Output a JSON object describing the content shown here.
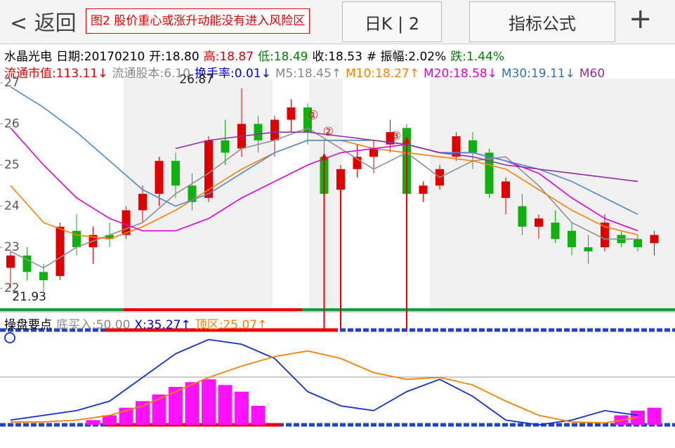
{
  "toolbar": {
    "back": "返回",
    "note": "图2 股价重心或涨升动能没有进入风险区",
    "period": "日K | 2",
    "formula": "指标公式",
    "add": "+"
  },
  "quote": {
    "line1": [
      {
        "text": "水晶光电",
        "color": "#000000"
      },
      {
        "text": "日期:20170210",
        "color": "#000000"
      },
      {
        "text": "开:18.80",
        "color": "#000000"
      },
      {
        "text": "高:18.87",
        "color": "#e00000"
      },
      {
        "text": "低:18.49",
        "color": "#008000"
      },
      {
        "text": "收:18.53",
        "color": "#000000"
      },
      {
        "text": "# 振幅:2.02%",
        "color": "#000000"
      },
      {
        "text": "跌:1.44%",
        "color": "#008000"
      }
    ],
    "line2": [
      {
        "text": "流通市值:113.11↓",
        "color": "#e00000"
      },
      {
        "text": "流通股本:6.10",
        "color": "#888888"
      },
      {
        "text": "换手率:0.01↓",
        "color": "#0000e0"
      },
      {
        "text": "M5:18.45↑",
        "color": "#888888"
      },
      {
        "text": "M10:18.27↑",
        "color": "#ff8000"
      },
      {
        "text": "M20:18.58↓",
        "color": "#e000e0"
      },
      {
        "text": "M30:19.11↓",
        "color": "#3070c0"
      },
      {
        "text": "M60",
        "color": "#9030a0"
      }
    ],
    "indicator": [
      {
        "text": "操盘要点",
        "color": "#000000"
      },
      {
        "text": "底买入:50.00",
        "color": "#888888"
      },
      {
        "text": "X:35.27↑",
        "color": "#0000e0"
      },
      {
        "text": "顶区:25.07↑",
        "color": "#ff8000"
      }
    ]
  },
  "chart_data": [
    {
      "type": "candlestick",
      "ylim": [
        21.5,
        27.1
      ],
      "yticks": [
        22,
        23,
        24,
        25,
        26,
        27
      ],
      "up_color": "#e00000",
      "down_color": "#10b010",
      "annotations": [
        "26.87",
        "21.93",
        "①",
        "②",
        "③"
      ],
      "open": [
        22.5,
        22.8,
        22.4,
        22.3,
        23.4,
        23.0,
        23.3,
        23.3,
        23.9,
        24.3,
        25.1,
        24.5,
        24.2,
        25.6,
        25.4,
        26.0,
        25.6,
        26.1,
        26.4,
        25.2,
        24.4,
        24.9,
        25.2,
        25.5,
        25.9,
        24.3,
        24.5,
        25.2,
        25.6,
        25.3,
        24.2,
        24.0,
        23.5,
        23.6,
        23.4,
        23.0,
        23.0,
        23.3,
        23.2,
        23.1
      ],
      "high": [
        22.9,
        23.0,
        22.6,
        23.6,
        23.8,
        23.5,
        23.6,
        24.0,
        24.5,
        25.2,
        25.3,
        24.8,
        25.7,
        26.1,
        26.87,
        26.2,
        26.2,
        26.6,
        26.5,
        25.6,
        25.0,
        25.5,
        25.6,
        26.1,
        26.0,
        24.6,
        25.0,
        25.8,
        25.8,
        25.4,
        24.7,
        24.3,
        23.8,
        23.9,
        23.6,
        23.3,
        23.8,
        23.4,
        23.3,
        23.4
      ],
      "low": [
        22.0,
        22.2,
        21.93,
        22.2,
        22.8,
        22.6,
        23.0,
        23.2,
        23.6,
        24.0,
        24.2,
        23.9,
        24.1,
        25.0,
        25.2,
        25.3,
        25.2,
        25.8,
        25.5,
        23.9,
        24.0,
        24.7,
        24.8,
        25.3,
        24.1,
        24.1,
        24.4,
        25.1,
        24.9,
        24.2,
        23.8,
        23.3,
        23.2,
        23.1,
        22.8,
        22.6,
        22.9,
        23.0,
        22.9,
        22.8
      ],
      "close": [
        22.8,
        22.4,
        22.2,
        23.5,
        23.0,
        23.3,
        23.2,
        23.9,
        24.3,
        25.1,
        24.5,
        24.1,
        25.6,
        25.3,
        26.0,
        25.6,
        26.1,
        26.4,
        25.8,
        24.3,
        24.9,
        25.2,
        25.4,
        25.8,
        24.3,
        24.5,
        24.9,
        25.7,
        25.3,
        24.3,
        24.6,
        23.5,
        23.7,
        23.2,
        23.0,
        22.9,
        23.6,
        23.1,
        23.0,
        23.3
      ],
      "ma_index": [
        0,
        2,
        4,
        6,
        8,
        10,
        12,
        14,
        16,
        18,
        20,
        22,
        24,
        26,
        28,
        30,
        32,
        34,
        36,
        38
      ],
      "series": [
        {
          "name": "M5",
          "color": "#909090",
          "values": [
            22.9,
            22.5,
            23.0,
            23.3,
            23.6,
            24.3,
            24.8,
            25.4,
            25.6,
            25.9,
            25.4,
            24.9,
            25.3,
            24.7,
            25.1,
            25.2,
            24.5,
            23.6,
            23.2,
            23.2
          ]
        },
        {
          "name": "M10",
          "color": "#ff8000",
          "values": [
            24.5,
            23.6,
            23.3,
            23.2,
            23.5,
            23.9,
            24.4,
            24.9,
            25.3,
            25.6,
            25.6,
            25.4,
            25.3,
            25.2,
            25.1,
            24.9,
            24.4,
            23.9,
            23.5,
            23.3
          ]
        },
        {
          "name": "M20",
          "color": "#e000e0",
          "values": [
            25.9,
            25.0,
            24.2,
            23.7,
            23.4,
            23.4,
            23.7,
            24.2,
            24.6,
            25.0,
            25.3,
            25.4,
            25.5,
            25.3,
            25.3,
            25.1,
            24.8,
            24.2,
            23.7,
            23.4
          ]
        },
        {
          "name": "M30",
          "color": "#4a8ad0",
          "values": [
            26.9,
            26.4,
            25.8,
            25.1,
            24.4,
            24.0,
            24.3,
            24.8,
            25.3,
            25.6,
            25.6,
            25.6,
            25.5,
            25.3,
            25.3,
            25.1,
            24.9,
            24.6,
            24.2,
            23.8
          ]
        },
        {
          "name": "M60",
          "color": "#9030a0",
          "values": [
            null,
            null,
            null,
            null,
            null,
            25.4,
            25.6,
            25.7,
            25.8,
            25.8,
            25.7,
            25.6,
            25.5,
            25.3,
            25.2,
            25.0,
            24.9,
            24.8,
            24.7,
            24.6
          ]
        }
      ]
    },
    {
      "type": "indicator",
      "ylim": [
        -20,
        108
      ],
      "bar_color": "#ff10ff",
      "bars": [
        0,
        0,
        0,
        0,
        0,
        5,
        10,
        18,
        25,
        32,
        40,
        45,
        48,
        42,
        35,
        20,
        0,
        0,
        0,
        0,
        0,
        0,
        0,
        0,
        0,
        0,
        0,
        0,
        0,
        0,
        0,
        0,
        0,
        0,
        0,
        0,
        0,
        10,
        15,
        18
      ],
      "index": [
        0,
        2,
        4,
        6,
        8,
        10,
        12,
        14,
        16,
        18,
        20,
        22,
        24,
        26,
        28,
        30,
        32,
        34,
        36,
        38
      ],
      "series": [
        {
          "name": "X",
          "color": "#1030d0",
          "values": [
            5,
            10,
            15,
            25,
            50,
            75,
            90,
            85,
            70,
            35,
            20,
            15,
            35,
            48,
            30,
            5,
            0,
            5,
            15,
            10
          ]
        },
        {
          "name": "顶区",
          "color": "#ff8000",
          "values": [
            3,
            3,
            5,
            10,
            20,
            35,
            50,
            62,
            72,
            78,
            70,
            55,
            48,
            50,
            42,
            25,
            10,
            3,
            2,
            8
          ]
        }
      ]
    }
  ]
}
